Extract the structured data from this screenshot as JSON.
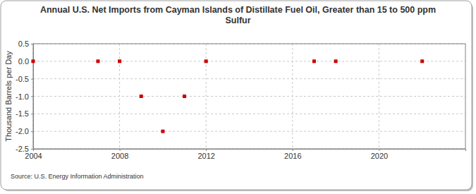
{
  "chart_data": {
    "type": "scatter",
    "title": "Annual U.S. Net Imports from Cayman Islands of Distillate Fuel Oil, Greater than 15 to 500 ppm Sulfur",
    "y_label": "Thousand Barrels per Day",
    "source": "Source: U.S. Energy Information Administration",
    "x": [
      2004,
      2007,
      2008,
      2009,
      2010,
      2011,
      2012,
      2017,
      2018,
      2022
    ],
    "values": [
      0,
      0,
      0,
      -1,
      -2,
      -1,
      0,
      0,
      0,
      0
    ],
    "color": "#cc0000",
    "marker": "square",
    "xlim": [
      2004,
      2024
    ],
    "xticks": [
      2004,
      2008,
      2012,
      2016,
      2020
    ],
    "ylim": [
      -2.5,
      0.5
    ],
    "yticks": [
      -2.5,
      {
        "value": -2,
        "label": "-2.0"
      },
      -1.5,
      {
        "value": -1,
        "label": "-1.0"
      },
      -0.5,
      {
        "value": 0,
        "label": "0.0"
      },
      0.5
    ],
    "grid": true
  }
}
